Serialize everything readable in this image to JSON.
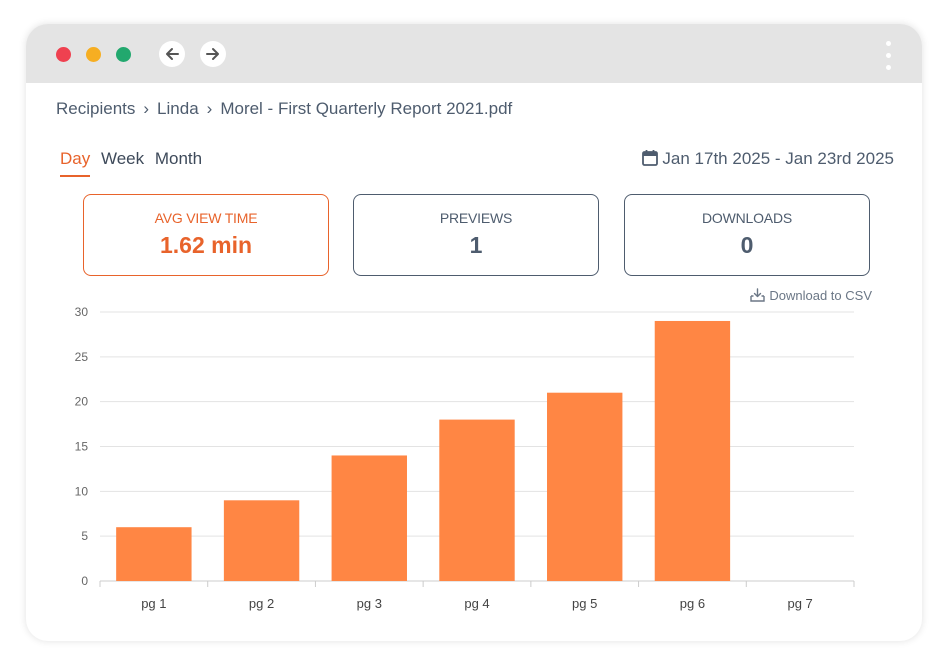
{
  "window": {
    "controls": [
      "close",
      "minimize",
      "maximize"
    ],
    "nav": {
      "back_icon": "arrow-left-icon",
      "forward_icon": "arrow-right-icon",
      "menu_icon": "kebab-menu-icon"
    }
  },
  "breadcrumb": {
    "items": [
      "Recipients",
      "Linda",
      "Morel - First Quarterly Report 2021.pdf"
    ],
    "separator": "›"
  },
  "periods": {
    "day": "Day",
    "week": "Week",
    "month": "Month",
    "selected": "Day"
  },
  "date_range": {
    "icon": "calendar-icon",
    "text": "Jan 17th 2025 - Jan 23rd 2025"
  },
  "stats": [
    {
      "label": "AVG VIEW TIME",
      "value": "1.62 min",
      "active": true
    },
    {
      "label": "PREVIEWS",
      "value": "1",
      "active": false
    },
    {
      "label": "DOWNLOADS",
      "value": "0",
      "active": false
    }
  ],
  "download_csv": {
    "icon": "download-icon",
    "label": "Download to CSV"
  },
  "colors": {
    "accent": "#e8632b",
    "bar": "#ff8644",
    "text": "#4e5c6e"
  },
  "chart_data": {
    "type": "bar",
    "categories": [
      "pg 1",
      "pg 2",
      "pg 3",
      "pg 4",
      "pg 5",
      "pg 6",
      "pg 7"
    ],
    "values": [
      6,
      9,
      14,
      18,
      21,
      29,
      0
    ],
    "yticks": [
      0,
      5,
      10,
      15,
      20,
      25,
      30
    ],
    "ylim": [
      0,
      30
    ],
    "grid": true,
    "title": "",
    "xlabel": "",
    "ylabel": ""
  }
}
